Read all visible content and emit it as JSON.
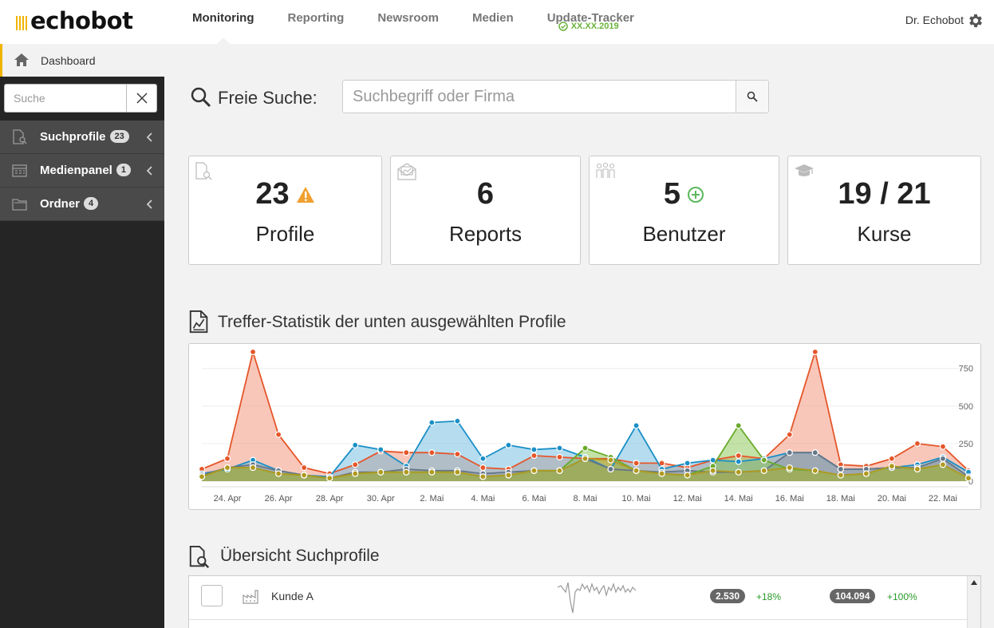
{
  "header": {
    "logo": "echobot",
    "nav": [
      {
        "label": "Monitoring",
        "active": true
      },
      {
        "label": "Reporting",
        "active": false
      },
      {
        "label": "Newsroom",
        "active": false
      },
      {
        "label": "Medien",
        "active": false
      },
      {
        "label": "Update-Tracker",
        "active": false,
        "sub": "XX.XX.2019"
      }
    ],
    "user": "Dr. Echobot"
  },
  "breadcrumb": {
    "label": "Dashboard"
  },
  "sidebar": {
    "search_placeholder": "Suche",
    "items": [
      {
        "label": "Suchprofile",
        "badge": "23",
        "icon": "search-profile-icon"
      },
      {
        "label": "Medienpanel",
        "badge": "1",
        "icon": "media-panel-icon"
      },
      {
        "label": "Ordner",
        "badge": "4",
        "icon": "folder-icon"
      }
    ]
  },
  "search": {
    "label": "Freie Suche:",
    "placeholder": "Suchbegriff oder Firma"
  },
  "cards": [
    {
      "value": "23",
      "label": "Profile",
      "icon": "profile-icon",
      "extra": "warning"
    },
    {
      "value": "6",
      "label": "Reports",
      "icon": "report-icon",
      "extra": ""
    },
    {
      "value": "5",
      "label": "Benutzer",
      "icon": "users-icon",
      "extra": "add"
    },
    {
      "value": "19 / 21",
      "label": "Kurse",
      "icon": "graduation-cap-icon",
      "extra": ""
    }
  ],
  "chart_section": {
    "title": "Treffer-Statistik der unten ausgewählten Profile"
  },
  "chart_data": {
    "type": "area",
    "x": [
      "23. Apr",
      "24. Apr",
      "25. Apr",
      "26. Apr",
      "27. Apr",
      "28. Apr",
      "29. Apr",
      "30. Apr",
      "1. Mai",
      "2. Mai",
      "3. Mai",
      "4. Mai",
      "5. Mai",
      "6. Mai",
      "7. Mai",
      "8. Mai",
      "9. Mai",
      "10. Mai",
      "11. Mai",
      "12. Mai",
      "13. Mai",
      "14. Mai",
      "15. Mai",
      "16. Mai",
      "17. Mai",
      "18. Mai",
      "19. Mai",
      "20. Mai",
      "21. Mai",
      "22. Mai",
      "23. Mai"
    ],
    "xticks": [
      "24. Apr",
      "26. Apr",
      "28. Apr",
      "30. Apr",
      "2. Mai",
      "4. Mai",
      "6. Mai",
      "8. Mai",
      "10. Mai",
      "12. Mai",
      "14. Mai",
      "16. Mai",
      "18. Mai",
      "20. Mai",
      "22. Mai"
    ],
    "yticks": [
      0,
      250,
      500,
      750
    ],
    "ylim": [
      0,
      860
    ],
    "series": [
      {
        "color": "#e5562a",
        "fill": "rgba(240,130,100,0.45)",
        "values": [
          80,
          150,
          860,
          310,
          90,
          50,
          110,
          200,
          190,
          190,
          180,
          90,
          80,
          170,
          160,
          150,
          150,
          120,
          120,
          90,
          140,
          170,
          150,
          310,
          860,
          110,
          100,
          150,
          250,
          230,
          70
        ]
      },
      {
        "color": "#1a8fc6",
        "fill": "rgba(90,180,220,0.45)",
        "values": [
          50,
          80,
          140,
          70,
          40,
          30,
          240,
          210,
          100,
          390,
          400,
          150,
          240,
          210,
          220,
          160,
          80,
          370,
          80,
          120,
          140,
          130,
          150,
          190,
          190,
          80,
          80,
          90,
          110,
          160,
          60
        ]
      },
      {
        "color": "#667788",
        "fill": "rgba(120,130,140,0.35)",
        "values": [
          40,
          90,
          110,
          70,
          40,
          20,
          60,
          60,
          80,
          70,
          70,
          50,
          60,
          70,
          70,
          150,
          80,
          70,
          60,
          70,
          60,
          60,
          70,
          190,
          190,
          80,
          80,
          90,
          90,
          150,
          30
        ]
      },
      {
        "color": "#6aaa2a",
        "fill": "rgba(120,190,60,0.45)",
        "values": [
          30,
          90,
          90,
          50,
          40,
          20,
          50,
          60,
          60,
          60,
          60,
          30,
          40,
          70,
          70,
          220,
          160,
          70,
          50,
          40,
          100,
          370,
          140,
          80,
          70,
          40,
          50,
          100,
          80,
          110,
          20
        ]
      },
      {
        "color": "#b09a20",
        "fill": "rgba(190,160,40,0.35)",
        "values": [
          30,
          90,
          90,
          50,
          40,
          20,
          50,
          60,
          60,
          60,
          60,
          30,
          40,
          70,
          70,
          150,
          140,
          70,
          50,
          40,
          70,
          60,
          70,
          90,
          70,
          40,
          50,
          100,
          80,
          110,
          20
        ]
      }
    ]
  },
  "profiles_section": {
    "title": "Übersicht Suchprofile"
  },
  "table": {
    "rows": [
      {
        "name": "Kunde A",
        "badge1": "2.530",
        "pct1": "+18%",
        "badge2": "104.094",
        "pct2": "+100%"
      }
    ]
  }
}
